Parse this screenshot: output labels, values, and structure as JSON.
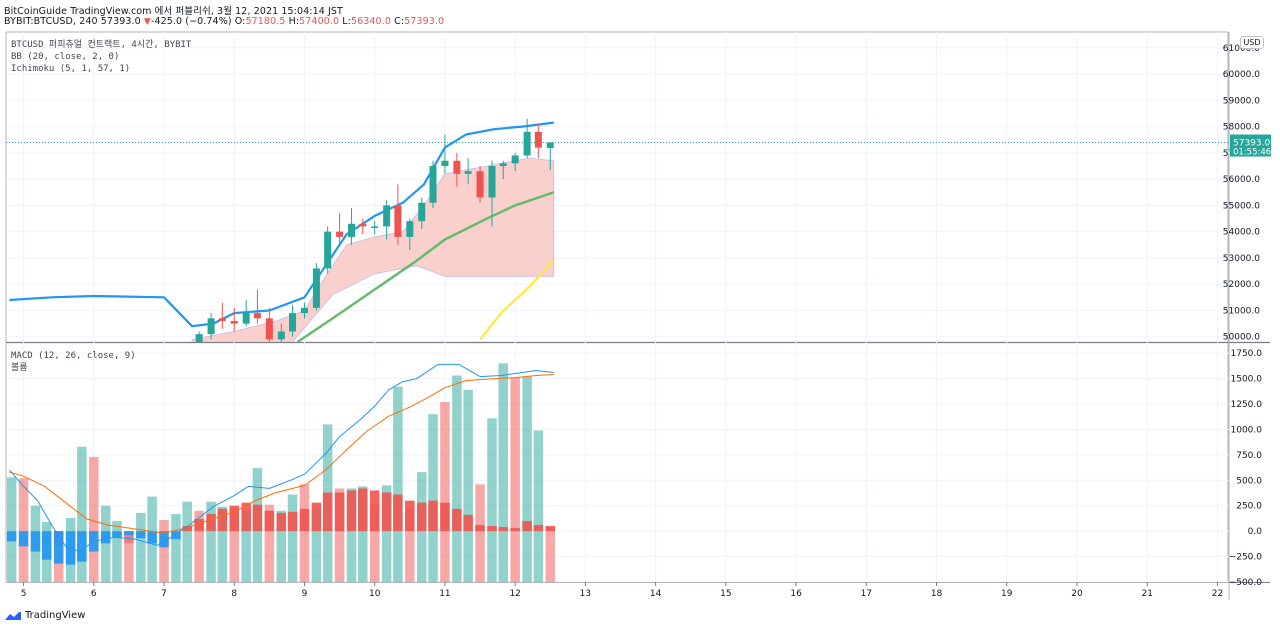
{
  "header": {
    "title": "BitCoinGuide TradingView.com 에서 퍼블리쉬, 3월 12, 2021 15:04:14 JST",
    "symbol": "BYBIT:BTCUSD, 240",
    "last": "57393.0",
    "change_arrow": "▼",
    "change": "-425.0 (−0.74%)",
    "o_label": "O:",
    "o": "57180.5",
    "h_label": "H:",
    "h": "57400.0",
    "l_label": "L:",
    "l": "56340.0",
    "c_label": "C:",
    "c": "57393.0"
  },
  "legend": {
    "symbol": "BTCUSD 퍼피츄얼 컨트랙트, 4시간, BYBIT",
    "bb": "BB (20, close, 2, 0)",
    "ichimoku": "Ichimoku (5, 1, 57, 1)",
    "macd": "MACD (12, 26, close, 9)",
    "volume": "볼륨"
  },
  "currency": "USD",
  "price_label": "57393.0",
  "countdown": "01:55:46",
  "brand": "TradingView",
  "colors": {
    "up": "#26a69a",
    "down": "#ef5350",
    "cloud": "#f8bcb8",
    "bb": "#2196f3",
    "mid": "#66bb6a",
    "lag": "#ffeb3b",
    "macd": "#2196f3",
    "signal": "#ff6d00"
  },
  "chart_data": [
    {
      "type": "candlestick",
      "x_label_ticks": [
        "5",
        "6",
        "7",
        "8",
        "9",
        "10",
        "11",
        "12",
        "13",
        "14",
        "15",
        "16",
        "17",
        "18",
        "19",
        "20",
        "21",
        "22"
      ],
      "y_ticks": [
        "50000.0",
        "51000.0",
        "52000.0",
        "53000.0",
        "54000.0",
        "55000.0",
        "56000.0",
        "57000.0",
        "58000.0",
        "59000.0",
        "60000.0",
        "61000.0"
      ],
      "ylim": [
        49800,
        61600
      ],
      "candles": [
        {
          "x": 7.5,
          "o": 49700,
          "h": 50200,
          "l": 49600,
          "c": 50100
        },
        {
          "x": 7.67,
          "o": 50100,
          "h": 50900,
          "l": 49900,
          "c": 50700
        },
        {
          "x": 7.83,
          "o": 50700,
          "h": 51300,
          "l": 50300,
          "c": 50600
        },
        {
          "x": 8.0,
          "o": 50600,
          "h": 51100,
          "l": 50200,
          "c": 50500
        },
        {
          "x": 8.17,
          "o": 50500,
          "h": 51400,
          "l": 50400,
          "c": 50900
        },
        {
          "x": 8.33,
          "o": 50900,
          "h": 51800,
          "l": 50500,
          "c": 50700
        },
        {
          "x": 8.5,
          "o": 50700,
          "h": 51100,
          "l": 49600,
          "c": 49900
        },
        {
          "x": 8.67,
          "o": 49900,
          "h": 50500,
          "l": 49600,
          "c": 50200
        },
        {
          "x": 8.83,
          "o": 50200,
          "h": 51200,
          "l": 50000,
          "c": 50900
        },
        {
          "x": 9.0,
          "o": 50900,
          "h": 51300,
          "l": 50700,
          "c": 51100
        },
        {
          "x": 9.17,
          "o": 51100,
          "h": 52800,
          "l": 51000,
          "c": 52600
        },
        {
          "x": 9.33,
          "o": 52600,
          "h": 54200,
          "l": 52400,
          "c": 54000
        },
        {
          "x": 9.5,
          "o": 54000,
          "h": 54700,
          "l": 53500,
          "c": 53800
        },
        {
          "x": 9.67,
          "o": 53800,
          "h": 54900,
          "l": 53500,
          "c": 54300
        },
        {
          "x": 9.83,
          "o": 54300,
          "h": 54500,
          "l": 53900,
          "c": 54200
        },
        {
          "x": 10.0,
          "o": 54200,
          "h": 54400,
          "l": 53900,
          "c": 54200
        },
        {
          "x": 10.17,
          "o": 54200,
          "h": 55200,
          "l": 53700,
          "c": 55000
        },
        {
          "x": 10.33,
          "o": 55000,
          "h": 55800,
          "l": 53500,
          "c": 53800
        },
        {
          "x": 10.5,
          "o": 53800,
          "h": 54500,
          "l": 53300,
          "c": 54400
        },
        {
          "x": 10.67,
          "o": 54400,
          "h": 55300,
          "l": 54100,
          "c": 55100
        },
        {
          "x": 10.83,
          "o": 55100,
          "h": 56700,
          "l": 54900,
          "c": 56500
        },
        {
          "x": 11.0,
          "o": 56500,
          "h": 57700,
          "l": 56200,
          "c": 56700
        },
        {
          "x": 11.17,
          "o": 56700,
          "h": 57000,
          "l": 55700,
          "c": 56200
        },
        {
          "x": 11.33,
          "o": 56200,
          "h": 56800,
          "l": 55800,
          "c": 56300
        },
        {
          "x": 11.5,
          "o": 56300,
          "h": 56500,
          "l": 55100,
          "c": 55300
        },
        {
          "x": 11.67,
          "o": 55300,
          "h": 56700,
          "l": 54200,
          "c": 56500
        },
        {
          "x": 11.83,
          "o": 56500,
          "h": 56700,
          "l": 56000,
          "c": 56600
        },
        {
          "x": 12.0,
          "o": 56600,
          "h": 57000,
          "l": 56300,
          "c": 56900
        },
        {
          "x": 12.17,
          "o": 56900,
          "h": 58300,
          "l": 56800,
          "c": 57800
        },
        {
          "x": 12.33,
          "o": 57800,
          "h": 58100,
          "l": 56800,
          "c": 57200
        },
        {
          "x": 12.5,
          "o": 57180.5,
          "h": 57400,
          "l": 56340,
          "c": 57393
        }
      ],
      "bb_upper": [
        [
          4.8,
          51400
        ],
        [
          5.4,
          51500
        ],
        [
          6.0,
          51550
        ],
        [
          7.0,
          51500
        ],
        [
          7.4,
          50400
        ],
        [
          7.7,
          50500
        ],
        [
          8.0,
          50900
        ],
        [
          8.5,
          51000
        ],
        [
          9.0,
          51500
        ],
        [
          9.3,
          52700
        ],
        [
          9.6,
          53900
        ],
        [
          10.0,
          54600
        ],
        [
          10.4,
          55100
        ],
        [
          10.7,
          55800
        ],
        [
          11.0,
          57200
        ],
        [
          11.3,
          57700
        ],
        [
          11.7,
          57900
        ],
        [
          12.1,
          58000
        ],
        [
          12.55,
          58150
        ]
      ],
      "bb_basis": [
        [
          8.9,
          49800
        ],
        [
          9.4,
          50700
        ],
        [
          10.0,
          51800
        ],
        [
          10.6,
          52900
        ],
        [
          11.0,
          53700
        ],
        [
          11.6,
          54500
        ],
        [
          12.0,
          55000
        ],
        [
          12.55,
          55500
        ]
      ],
      "lagging": [
        [
          11.5,
          49900
        ],
        [
          11.8,
          50900
        ],
        [
          12.2,
          51900
        ],
        [
          12.55,
          52900
        ]
      ]
    },
    {
      "type": "bar",
      "name": "MACD",
      "y_ticks": [
        "−500.0",
        "−250.0",
        "0.0",
        "250.0",
        "500.0",
        "750.0",
        "1000.0",
        "1250.0",
        "1500.0",
        "1750.0"
      ],
      "ylim": [
        -500,
        1850
      ],
      "hist": [
        [
          4.83,
          -100
        ],
        [
          5.0,
          -150
        ],
        [
          5.17,
          -200
        ],
        [
          5.33,
          -280
        ],
        [
          5.5,
          -320
        ],
        [
          5.67,
          -330
        ],
        [
          5.83,
          -300
        ],
        [
          6.0,
          -200
        ],
        [
          6.17,
          -120
        ],
        [
          6.33,
          -60
        ],
        [
          6.5,
          -40
        ],
        [
          6.67,
          -70
        ],
        [
          6.83,
          -120
        ],
        [
          7.0,
          -160
        ],
        [
          7.17,
          -80
        ],
        [
          7.33,
          50
        ],
        [
          7.5,
          120
        ],
        [
          7.67,
          170
        ],
        [
          7.83,
          220
        ],
        [
          8.0,
          250
        ],
        [
          8.17,
          280
        ],
        [
          8.33,
          260
        ],
        [
          8.5,
          200
        ],
        [
          8.67,
          180
        ],
        [
          8.83,
          190
        ],
        [
          9.0,
          220
        ],
        [
          9.17,
          280
        ],
        [
          9.33,
          380
        ],
        [
          9.5,
          380
        ],
        [
          9.67,
          400
        ],
        [
          9.83,
          420
        ],
        [
          10.0,
          400
        ],
        [
          10.17,
          380
        ],
        [
          10.33,
          360
        ],
        [
          10.5,
          300
        ],
        [
          10.67,
          280
        ],
        [
          10.83,
          300
        ],
        [
          11.0,
          280
        ],
        [
          11.17,
          220
        ],
        [
          11.33,
          160
        ],
        [
          11.5,
          60
        ],
        [
          11.67,
          50
        ],
        [
          11.83,
          40
        ],
        [
          12.0,
          30
        ],
        [
          12.17,
          100
        ],
        [
          12.33,
          60
        ],
        [
          12.5,
          50
        ]
      ],
      "volume": [
        [
          4.83,
          530
        ],
        [
          5.0,
          520
        ],
        [
          5.17,
          250
        ],
        [
          5.33,
          90
        ],
        [
          5.5,
          -150
        ],
        [
          5.67,
          130
        ],
        [
          5.83,
          830
        ],
        [
          6.0,
          730
        ],
        [
          6.17,
          250
        ],
        [
          6.33,
          100
        ],
        [
          6.5,
          -120
        ],
        [
          6.67,
          180
        ],
        [
          6.83,
          340
        ],
        [
          7.0,
          110
        ],
        [
          7.17,
          170
        ],
        [
          7.33,
          290
        ],
        [
          7.5,
          200
        ],
        [
          7.67,
          290
        ],
        [
          7.83,
          240
        ],
        [
          8.0,
          220
        ],
        [
          8.17,
          200
        ],
        [
          8.33,
          620
        ],
        [
          8.5,
          260
        ],
        [
          8.67,
          200
        ],
        [
          8.83,
          360
        ],
        [
          9.0,
          460
        ],
        [
          9.17,
          230
        ],
        [
          9.33,
          1050
        ],
        [
          9.5,
          420
        ],
        [
          9.67,
          420
        ],
        [
          9.83,
          440
        ],
        [
          10.0,
          260
        ],
        [
          10.17,
          450
        ],
        [
          10.33,
          1420
        ],
        [
          10.5,
          230
        ],
        [
          10.67,
          580
        ],
        [
          10.83,
          1150
        ],
        [
          11.0,
          1270
        ],
        [
          11.17,
          1530
        ],
        [
          11.33,
          1390
        ],
        [
          11.5,
          460
        ],
        [
          11.67,
          1110
        ],
        [
          11.83,
          1650
        ],
        [
          12.0,
          1510
        ],
        [
          12.17,
          1520
        ],
        [
          12.33,
          990
        ],
        [
          12.5,
          40
        ]
      ],
      "macd_line": [
        [
          4.8,
          600
        ],
        [
          5.0,
          440
        ],
        [
          5.2,
          300
        ],
        [
          5.4,
          60
        ],
        [
          5.6,
          -150
        ],
        [
          5.8,
          -200
        ],
        [
          6.0,
          -100
        ],
        [
          6.3,
          -60
        ],
        [
          6.6,
          -80
        ],
        [
          6.9,
          -140
        ],
        [
          7.1,
          -60
        ],
        [
          7.4,
          80
        ],
        [
          7.7,
          240
        ],
        [
          8.0,
          350
        ],
        [
          8.2,
          440
        ],
        [
          8.5,
          420
        ],
        [
          8.8,
          500
        ],
        [
          9.0,
          560
        ],
        [
          9.3,
          760
        ],
        [
          9.5,
          930
        ],
        [
          9.8,
          1100
        ],
        [
          10.0,
          1230
        ],
        [
          10.2,
          1390
        ],
        [
          10.4,
          1470
        ],
        [
          10.6,
          1500
        ],
        [
          10.9,
          1640
        ],
        [
          11.2,
          1640
        ],
        [
          11.5,
          1520
        ],
        [
          11.8,
          1530
        ],
        [
          12.1,
          1560
        ],
        [
          12.3,
          1580
        ],
        [
          12.55,
          1560
        ]
      ],
      "signal_line": [
        [
          4.8,
          580
        ],
        [
          5.0,
          540
        ],
        [
          5.3,
          440
        ],
        [
          5.6,
          280
        ],
        [
          5.9,
          120
        ],
        [
          6.2,
          60
        ],
        [
          6.6,
          20
        ],
        [
          7.0,
          -20
        ],
        [
          7.3,
          30
        ],
        [
          7.7,
          120
        ],
        [
          8.0,
          190
        ],
        [
          8.3,
          300
        ],
        [
          8.6,
          380
        ],
        [
          9.0,
          450
        ],
        [
          9.3,
          600
        ],
        [
          9.6,
          800
        ],
        [
          9.9,
          990
        ],
        [
          10.2,
          1130
        ],
        [
          10.5,
          1220
        ],
        [
          10.8,
          1330
        ],
        [
          11.0,
          1410
        ],
        [
          11.3,
          1480
        ],
        [
          11.7,
          1500
        ],
        [
          12.0,
          1510
        ],
        [
          12.3,
          1530
        ],
        [
          12.55,
          1540
        ]
      ]
    }
  ]
}
